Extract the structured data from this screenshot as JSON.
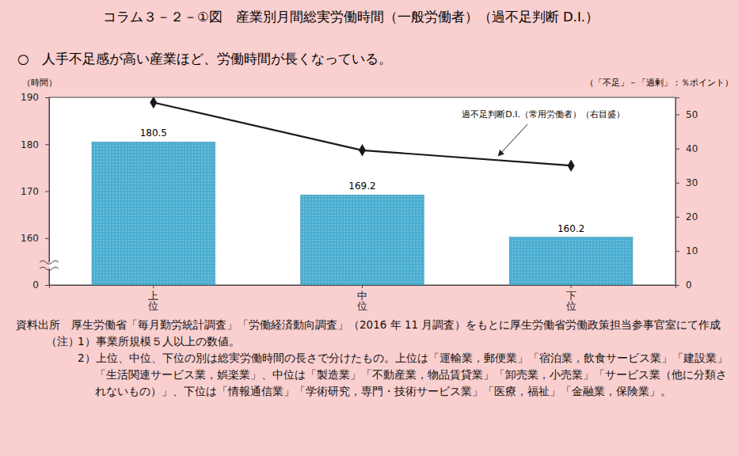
{
  "chart_data": {
    "type": "bar",
    "title": "コラム３－２－①図　産業別月間総実労働時間（一般労働者）（過不足判断 D.I.）",
    "subtitle": "○　人手不足感が高い産業ほど、労働時間が長くなっている。",
    "y_label": "（時間）",
    "y2_label": "（「不足」－「過剰」：％ポイント）",
    "categories": [
      "上位",
      "中位",
      "下位"
    ],
    "series": [
      {
        "type": "bar",
        "color": "#4aaed0",
        "data_labels": true,
        "values": [
          180.5,
          169.2,
          160.2
        ]
      },
      {
        "type": "line",
        "name": "過不足判断D.I.（常用労働者）（右目盛）",
        "axis": "y2",
        "color": "#1a1a1a",
        "marker": "diamond",
        "line_style": "solid",
        "values": [
          53.5,
          39.5,
          35
        ]
      }
    ],
    "ylim": [
      0,
      190
    ],
    "yticks": [
      0,
      160,
      170,
      180,
      190
    ],
    "y2lim": [
      0,
      55
    ],
    "y2ticks": [
      0,
      10,
      20,
      30,
      40,
      50
    ],
    "grid": false,
    "source": "資料出所　厚生労働省「毎月勤労統計調査」「労働経済動向調査」（2016 年 11 月調査）をもとに厚生労働省労働政策担当参事官室にて作成",
    "notes_title": "（注）",
    "notes": [
      "1）事業所規模５人以上の数値。",
      "2）上位、中位、下位の別は総実労働時間の長さで分けたもの。上位は「運輸業，郵便業」「宿泊業，飲食サービス業」「建設業」「生活関連サービス業，娯楽業」、中位は「製造業」「不動産業，物品賃貸業」「卸売業，小売業」「サービス業（他に分類されないもの）」、下位は「情報通信業」「学術研究，専門・技術サービス業」「医療，福祉」「金融業，保険業」。"
    ]
  }
}
